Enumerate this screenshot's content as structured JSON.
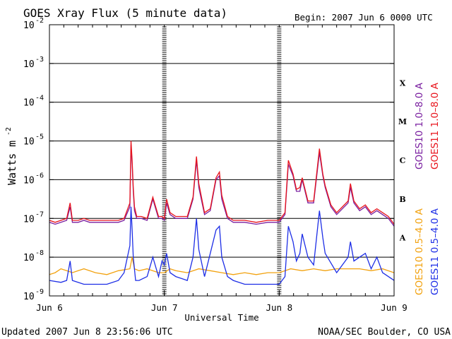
{
  "chart_data": {
    "type": "line",
    "title": "GOES Xray Flux (5 minute data)",
    "begin_label": "Begin:  2007 Jun 6 0000 UTC",
    "xlabel": "Universal Time",
    "ylabel_main": "Watts m",
    "ylabel_exp": "-2",
    "x_ticks": [
      "Jun 6",
      "Jun 7",
      "Jun 8",
      "Jun 9"
    ],
    "x_range_days": [
      0,
      3
    ],
    "y_ticks": [
      {
        "base": "10",
        "exp": "-2"
      },
      {
        "base": "10",
        "exp": "-3"
      },
      {
        "base": "10",
        "exp": "-4"
      },
      {
        "base": "10",
        "exp": "-5"
      },
      {
        "base": "10",
        "exp": "-6"
      },
      {
        "base": "10",
        "exp": "-7"
      },
      {
        "base": "10",
        "exp": "-8"
      },
      {
        "base": "10",
        "exp": "-9"
      }
    ],
    "y_log_range": [
      -9,
      -2
    ],
    "flare_classes": [
      "X",
      "M",
      "C",
      "B",
      "A"
    ],
    "series": [
      {
        "name": "GOES10 1.0-8.0 A",
        "color": "#7a1fa0",
        "band": "long",
        "legend": "GOES10 1.0–8.0 A",
        "x": [
          0,
          0.05,
          0.1,
          0.15,
          0.18,
          0.2,
          0.25,
          0.3,
          0.35,
          0.4,
          0.5,
          0.6,
          0.65,
          0.7,
          0.71,
          0.72,
          0.73,
          0.74,
          0.76,
          0.78,
          0.8,
          0.85,
          0.9,
          0.95,
          0.98,
          1.0,
          1.02,
          1.05,
          1.1,
          1.2,
          1.25,
          1.28,
          1.3,
          1.35,
          1.4,
          1.45,
          1.48,
          1.5,
          1.55,
          1.6,
          1.7,
          1.8,
          1.9,
          2.0,
          2.05,
          2.08,
          2.12,
          2.15,
          2.18,
          2.2,
          2.25,
          2.3,
          2.35,
          2.38,
          2.4,
          2.45,
          2.5,
          2.6,
          2.62,
          2.65,
          2.7,
          2.75,
          2.8,
          2.85,
          2.9,
          2.95,
          3.0
        ],
        "y": [
          -7.1,
          -7.15,
          -7.1,
          -7.05,
          -6.7,
          -7.1,
          -7.1,
          -7.05,
          -7.1,
          -7.1,
          -7.1,
          -7.1,
          -7.05,
          -6.7,
          -5.1,
          -5.6,
          -6.3,
          -6.8,
          -7.0,
          -7.0,
          -7.0,
          -7.05,
          -6.5,
          -7.0,
          -7.0,
          -7.05,
          -6.6,
          -6.9,
          -7.0,
          -7.0,
          -6.5,
          -5.5,
          -6.2,
          -6.9,
          -6.8,
          -6.0,
          -5.9,
          -6.5,
          -7.0,
          -7.1,
          -7.1,
          -7.15,
          -7.1,
          -7.1,
          -6.9,
          -5.6,
          -5.9,
          -6.3,
          -6.3,
          -6.0,
          -6.6,
          -6.6,
          -5.3,
          -5.9,
          -6.2,
          -6.7,
          -6.9,
          -6.6,
          -6.2,
          -6.6,
          -6.8,
          -6.7,
          -6.9,
          -6.8,
          -6.9,
          -7.0,
          -7.2
        ]
      },
      {
        "name": "GOES11 1.0-8.0 A",
        "color": "#e8141c",
        "band": "long",
        "legend": "GOES11 1.0–8.0 A",
        "x": [
          0,
          0.05,
          0.1,
          0.15,
          0.18,
          0.2,
          0.25,
          0.3,
          0.35,
          0.4,
          0.5,
          0.6,
          0.65,
          0.7,
          0.71,
          0.72,
          0.73,
          0.74,
          0.76,
          0.78,
          0.8,
          0.85,
          0.9,
          0.95,
          0.98,
          1.0,
          1.02,
          1.05,
          1.1,
          1.2,
          1.25,
          1.28,
          1.3,
          1.35,
          1.4,
          1.45,
          1.48,
          1.5,
          1.55,
          1.6,
          1.7,
          1.8,
          1.9,
          2.0,
          2.05,
          2.08,
          2.12,
          2.15,
          2.18,
          2.2,
          2.25,
          2.3,
          2.35,
          2.38,
          2.4,
          2.45,
          2.5,
          2.6,
          2.62,
          2.65,
          2.7,
          2.75,
          2.8,
          2.85,
          2.9,
          2.95,
          3.0
        ],
        "y": [
          -7.05,
          -7.1,
          -7.05,
          -7.0,
          -6.6,
          -7.05,
          -7.05,
          -7.0,
          -7.05,
          -7.05,
          -7.05,
          -7.05,
          -7.0,
          -6.6,
          -5.0,
          -5.5,
          -6.2,
          -6.7,
          -6.95,
          -6.95,
          -6.95,
          -7.0,
          -6.45,
          -6.95,
          -6.95,
          -7.0,
          -6.5,
          -6.85,
          -6.95,
          -6.95,
          -6.45,
          -5.4,
          -6.1,
          -6.85,
          -6.75,
          -5.95,
          -5.8,
          -6.4,
          -6.95,
          -7.05,
          -7.05,
          -7.1,
          -7.05,
          -7.05,
          -6.85,
          -5.5,
          -5.85,
          -6.25,
          -6.2,
          -5.95,
          -6.55,
          -6.55,
          -5.2,
          -5.85,
          -6.15,
          -6.65,
          -6.85,
          -6.55,
          -6.1,
          -6.55,
          -6.75,
          -6.65,
          -6.85,
          -6.75,
          -6.85,
          -6.95,
          -7.15
        ]
      },
      {
        "name": "GOES10 0.5-4.0 A",
        "color": "#f2a20f",
        "band": "short",
        "legend": "GOES10 0.5–4.0 A",
        "x": [
          0,
          0.05,
          0.1,
          0.15,
          0.2,
          0.25,
          0.3,
          0.4,
          0.5,
          0.6,
          0.7,
          0.72,
          0.74,
          0.78,
          0.85,
          0.95,
          1.0,
          1.05,
          1.1,
          1.2,
          1.3,
          1.4,
          1.5,
          1.6,
          1.7,
          1.8,
          1.9,
          2.0,
          2.1,
          2.2,
          2.3,
          2.4,
          2.5,
          2.6,
          2.7,
          2.8,
          2.9,
          3.0
        ],
        "y": [
          -8.45,
          -8.4,
          -8.3,
          -8.35,
          -8.4,
          -8.35,
          -8.3,
          -8.4,
          -8.45,
          -8.35,
          -8.3,
          -8.0,
          -8.3,
          -8.35,
          -8.3,
          -8.4,
          -8.4,
          -8.3,
          -8.35,
          -8.4,
          -8.3,
          -8.35,
          -8.4,
          -8.45,
          -8.4,
          -8.45,
          -8.4,
          -8.4,
          -8.3,
          -8.35,
          -8.3,
          -8.35,
          -8.3,
          -8.3,
          -8.3,
          -8.35,
          -8.3,
          -8.4
        ]
      },
      {
        "name": "GOES11 0.5-4.0 A",
        "color": "#1d2ee6",
        "band": "short",
        "legend": "GOES11 0.5–4.0 A",
        "x": [
          0,
          0.1,
          0.15,
          0.18,
          0.2,
          0.3,
          0.4,
          0.5,
          0.6,
          0.65,
          0.7,
          0.71,
          0.72,
          0.73,
          0.75,
          0.78,
          0.85,
          0.9,
          0.95,
          0.98,
          1.0,
          1.02,
          1.05,
          1.1,
          1.2,
          1.25,
          1.28,
          1.3,
          1.35,
          1.45,
          1.48,
          1.5,
          1.55,
          1.6,
          1.7,
          1.8,
          1.9,
          2.0,
          2.05,
          2.08,
          2.12,
          2.15,
          2.18,
          2.2,
          2.25,
          2.3,
          2.35,
          2.38,
          2.4,
          2.5,
          2.6,
          2.62,
          2.65,
          2.7,
          2.75,
          2.8,
          2.85,
          2.9,
          2.95,
          3.0
        ],
        "y": [
          -8.6,
          -8.65,
          -8.6,
          -8.1,
          -8.6,
          -8.7,
          -8.7,
          -8.7,
          -8.6,
          -8.4,
          -7.7,
          -6.7,
          -7.3,
          -8.0,
          -8.6,
          -8.6,
          -8.5,
          -8.0,
          -8.5,
          -8.1,
          -8.2,
          -7.9,
          -8.4,
          -8.5,
          -8.6,
          -8.0,
          -7.0,
          -7.8,
          -8.5,
          -7.3,
          -7.2,
          -8.0,
          -8.5,
          -8.6,
          -8.7,
          -8.7,
          -8.7,
          -8.7,
          -8.5,
          -7.2,
          -7.6,
          -8.1,
          -7.9,
          -7.4,
          -8.0,
          -8.2,
          -6.8,
          -7.5,
          -7.9,
          -8.4,
          -8.0,
          -7.6,
          -8.1,
          -8.0,
          -7.9,
          -8.3,
          -8.0,
          -8.4,
          -8.5,
          -8.6
        ]
      }
    ]
  },
  "footer": {
    "updated": "Updated 2007 Jun  8 23:56:06 UTC",
    "credit": "NOAA/SEC Boulder, CO USA"
  }
}
